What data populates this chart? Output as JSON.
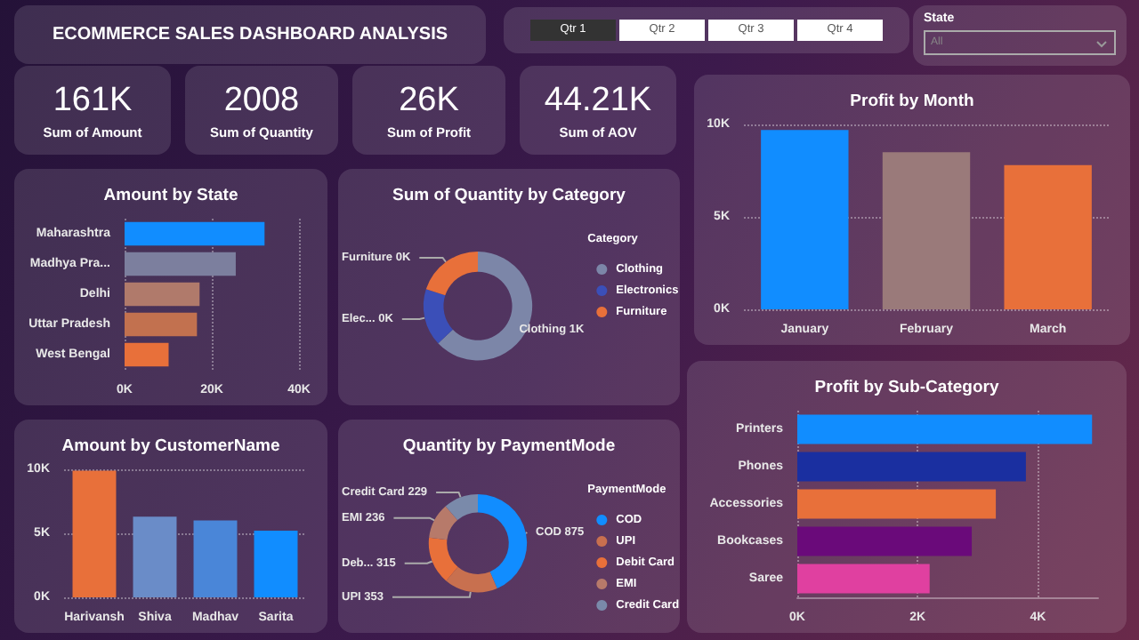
{
  "chart_data": [
    {
      "type": "other",
      "title": "ECOMMERCE SALES DASHBOARD ANALYSIS"
    },
    {
      "type": "other",
      "annotations": [
        "Qtr 1",
        "Qtr 2",
        "Qtr 3",
        "Qtr 4"
      ]
    },
    {
      "type": "other",
      "title": "State",
      "annotations": [
        "All"
      ]
    },
    {
      "type": "other",
      "title": "Sum of Amount",
      "annotations": [
        "161K"
      ]
    },
    {
      "type": "other",
      "title": "Sum of Quantity",
      "annotations": [
        "2008"
      ]
    },
    {
      "type": "other",
      "title": "Sum of Profit",
      "annotations": [
        "26K"
      ]
    },
    {
      "type": "other",
      "title": "Sum of AOV",
      "annotations": [
        "44.21K"
      ]
    },
    {
      "type": "bar",
      "title": "Profit by Month",
      "categories": [
        "January",
        "February",
        "March"
      ],
      "values": [
        9700,
        8500,
        7800
      ],
      "colors": [
        "#118dff",
        "#9a7a7a",
        "#e8703a"
      ],
      "ylim": [
        0,
        10000
      ],
      "yticks": [
        {
          "value": 0,
          "label": "0K"
        },
        {
          "value": 5000,
          "label": "5K"
        },
        {
          "value": 10000,
          "label": "10K"
        }
      ],
      "grid": "y"
    },
    {
      "type": "bar",
      "title": "Amount by State",
      "orientation": "horizontal",
      "categories": [
        "Maharashtra",
        "Madhya Pra...",
        "Delhi",
        "Uttar Pradesh",
        "West Bengal"
      ],
      "values": [
        32100,
        25500,
        17200,
        16600,
        10100
      ],
      "colors": [
        "#118dff",
        "#7c7f9e",
        "#b07a6b",
        "#c2714f",
        "#e8703a"
      ],
      "xlim": [
        0,
        40000
      ],
      "xticks": [
        {
          "value": 0,
          "label": "0K"
        },
        {
          "value": 20000,
          "label": "20K"
        },
        {
          "value": 40000,
          "label": "40K"
        }
      ],
      "grid": "x"
    },
    {
      "type": "donut",
      "title": "Sum of Quantity by Category",
      "categories": [
        "Clothing",
        "Electronics",
        "Furniture"
      ],
      "values": [
        63,
        17,
        20
      ],
      "colors": [
        "#7c86a8",
        "#3b4fb8",
        "#e8703a"
      ],
      "value_labels": [
        "Clothing 1K",
        "Elec... 0K",
        "Furniture 0K"
      ],
      "legend": "right",
      "legend_title": "Category"
    },
    {
      "type": "bar",
      "title": "Profit by Sub-Category",
      "orientation": "horizontal",
      "categories": [
        "Printers",
        "Phones",
        "Accessories",
        "Bookcases",
        "Saree"
      ],
      "values": [
        4900,
        3800,
        3300,
        2900,
        2200
      ],
      "colors": [
        "#118dff",
        "#1a2fa0",
        "#e8703a",
        "#6a0a7a",
        "#e040a0"
      ],
      "xlim": [
        0,
        5000
      ],
      "xticks": [
        {
          "value": 0,
          "label": "0K"
        },
        {
          "value": 2000,
          "label": "2K"
        },
        {
          "value": 4000,
          "label": "4K"
        }
      ],
      "grid": "x"
    },
    {
      "type": "bar",
      "title": "Amount by CustomerName",
      "categories": [
        "Harivansh",
        "Shiva",
        "Madhav",
        "Sarita"
      ],
      "values": [
        9900,
        6300,
        6000,
        5200
      ],
      "colors": [
        "#e8703a",
        "#6a8cc8",
        "#4a86d8",
        "#118dff"
      ],
      "ylim": [
        0,
        10000
      ],
      "yticks": [
        {
          "value": 0,
          "label": "0K"
        },
        {
          "value": 5000,
          "label": "5K"
        },
        {
          "value": 10000,
          "label": "10K"
        }
      ],
      "grid": "y"
    },
    {
      "type": "donut",
      "title": "Quantity by PaymentMode",
      "categories": [
        "COD",
        "UPI",
        "Debit Card",
        "EMI",
        "Credit Card"
      ],
      "values": [
        875,
        353,
        315,
        236,
        229
      ],
      "colors": [
        "#118dff",
        "#c8704f",
        "#e8703a",
        "#b77a6a",
        "#7a8aaa"
      ],
      "value_labels": [
        "COD 875",
        "UPI 353",
        "Deb... 315",
        "EMI 236",
        "Credit Card 229"
      ],
      "legend": "right",
      "legend_title": "PaymentMode"
    }
  ]
}
